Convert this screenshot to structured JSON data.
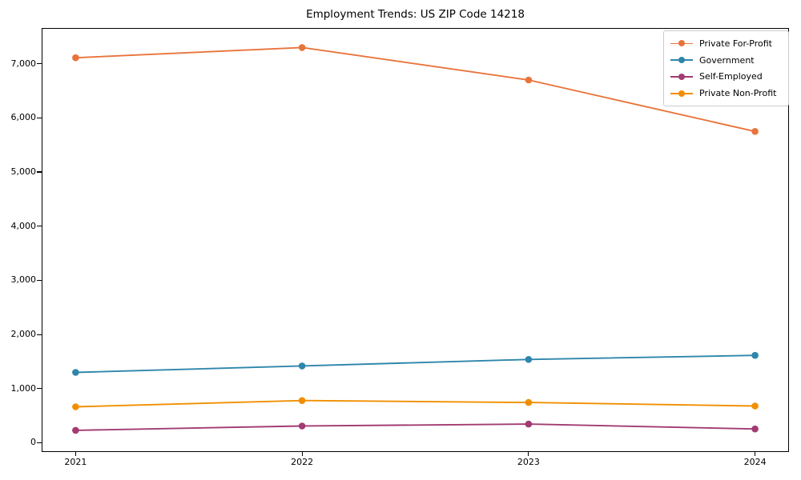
{
  "chart_data": {
    "type": "line",
    "title": "Employment Trends: US ZIP Code 14218",
    "x": [
      2021,
      2022,
      2023,
      2024
    ],
    "x_tick_labels": [
      "2021",
      "2022",
      "2023",
      "2024"
    ],
    "y_ticks": [
      0,
      1000,
      2000,
      3000,
      4000,
      5000,
      6000,
      7000
    ],
    "y_tick_labels": [
      "0",
      "1,000",
      "2,000",
      "3,000",
      "4,000",
      "5,000",
      "6,000",
      "7,000"
    ],
    "xlim": [
      2020.85,
      2024.15
    ],
    "ylim": [
      -170,
      7660
    ],
    "grid": false,
    "legend_position": "upper right",
    "marker": "circle",
    "series": [
      {
        "name": "Private For-Profit",
        "color": "#E8743B",
        "values": [
          7110,
          7300,
          6700,
          5750
        ]
      },
      {
        "name": "Government",
        "color": "#2E86AB",
        "values": [
          1300,
          1420,
          1540,
          1615
        ]
      },
      {
        "name": "Self-Employed",
        "color": "#A23B72",
        "values": [
          230,
          310,
          345,
          255
        ]
      },
      {
        "name": "Private Non-Profit",
        "color": "#F18F01",
        "values": [
          665,
          780,
          745,
          680
        ]
      }
    ]
  }
}
